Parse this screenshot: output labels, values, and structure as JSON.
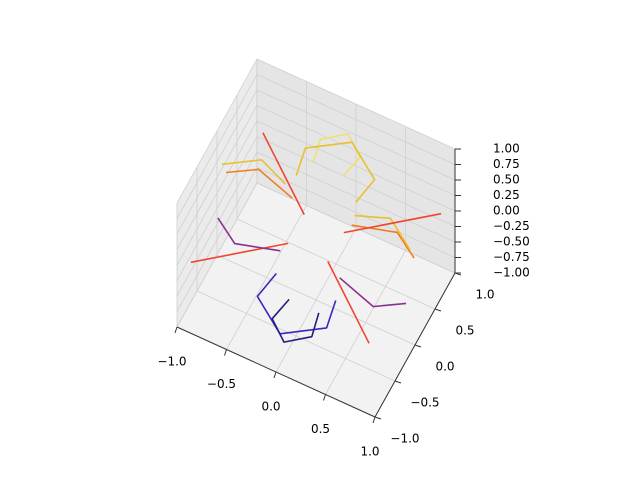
{
  "chart_data": {
    "type": "contour3d",
    "xlim": [
      -1,
      1
    ],
    "ylim": [
      -1,
      1
    ],
    "zlim": [
      -1,
      1
    ],
    "xticks": [
      {
        "value": -1,
        "label": "−1.0"
      },
      {
        "value": -0.5,
        "label": "−0.5"
      },
      {
        "value": 0,
        "label": "0.0"
      },
      0.5,
      {
        "value": 1,
        "label": "1.0"
      }
    ],
    "yticks": [
      {
        "value": -1,
        "label": "−1.0"
      },
      {
        "value": -0.5,
        "label": "−0.5"
      },
      {
        "value": 0,
        "label": "0.0"
      },
      0.5,
      {
        "value": 1,
        "label": "1.0"
      }
    ],
    "zticks": [
      {
        "value": -1,
        "label": "−1.00"
      },
      {
        "value": -0.75,
        "label": "−0.75"
      },
      {
        "value": -0.5,
        "label": "−0.50"
      },
      {
        "value": -0.25,
        "label": "−0.25"
      },
      {
        "value": 0,
        "label": "0.00"
      },
      {
        "value": 0.25,
        "label": "0.25"
      },
      {
        "value": 0.5,
        "label": "0.50"
      },
      {
        "value": 0.75,
        "label": "0.75"
      },
      {
        "value": 1,
        "label": "1.00"
      }
    ],
    "grid": true,
    "series": [
      {
        "color": "#f0e070",
        "z": 0.75,
        "x": [
          -0.15,
          -0.2,
          0,
          0.2,
          0.15
        ],
        "y": [
          0.3,
          0.6,
          0.8,
          0.6,
          0.3
        ]
      },
      {
        "color": "#e8c030",
        "z": 0.5,
        "x": [
          -0.3,
          -0.35,
          0,
          0.35,
          0.3
        ],
        "y": [
          0.25,
          0.6,
          0.9,
          0.6,
          0.25
        ]
      },
      {
        "color": "#f07d20",
        "z": 0.25,
        "x": [
          0.3,
          0.7,
          0.95
        ],
        "y": [
          0.15,
          0.3,
          0.1
        ]
      },
      {
        "color": "#f07d20",
        "z": 0.25,
        "x": [
          -0.3,
          -0.7,
          -0.95
        ],
        "y": [
          0.15,
          0.3,
          0.1
        ]
      },
      {
        "color": "#e8c030",
        "z": 0.5,
        "x": [
          0.35,
          0.65,
          0.95
        ],
        "y": [
          0.1,
          0.25,
          0.0
        ]
      },
      {
        "color": "#e8c030",
        "z": 0.5,
        "x": [
          -0.35,
          -0.65,
          -0.95
        ],
        "y": [
          0.1,
          0.25,
          0.0
        ]
      },
      {
        "color": "#f04530",
        "z": 0,
        "x": [
          0.2,
          0.9
        ],
        "y": [
          0.2,
          0.9
        ]
      },
      {
        "color": "#f04530",
        "z": 0,
        "x": [
          -0.2,
          -0.9
        ],
        "y": [
          -0.2,
          -0.9
        ]
      },
      {
        "color": "#f04530",
        "z": 0,
        "x": [
          0.2,
          0.9
        ],
        "y": [
          -0.2,
          -0.9
        ]
      },
      {
        "color": "#f04530",
        "z": 0,
        "x": [
          -0.2,
          -0.9
        ],
        "y": [
          0.2,
          0.9
        ]
      },
      {
        "color": "#8c3090",
        "z": -0.25,
        "x": [
          0.3,
          0.7,
          0.95
        ],
        "y": [
          -0.15,
          -0.3,
          -0.1
        ]
      },
      {
        "color": "#8c3090",
        "z": -0.25,
        "x": [
          -0.3,
          -0.7,
          -0.95
        ],
        "y": [
          -0.15,
          -0.3,
          -0.1
        ]
      },
      {
        "color": "#3c28c0",
        "z": -0.5,
        "x": [
          -0.3,
          -0.35,
          0,
          0.35,
          0.3
        ],
        "y": [
          -0.25,
          -0.6,
          -0.9,
          -0.6,
          -0.25
        ]
      },
      {
        "color": "#20207a",
        "z": -0.75,
        "x": [
          -0.15,
          -0.2,
          0,
          0.2,
          0.15
        ],
        "y": [
          -0.3,
          -0.6,
          -0.8,
          -0.6,
          -0.3
        ]
      }
    ]
  }
}
